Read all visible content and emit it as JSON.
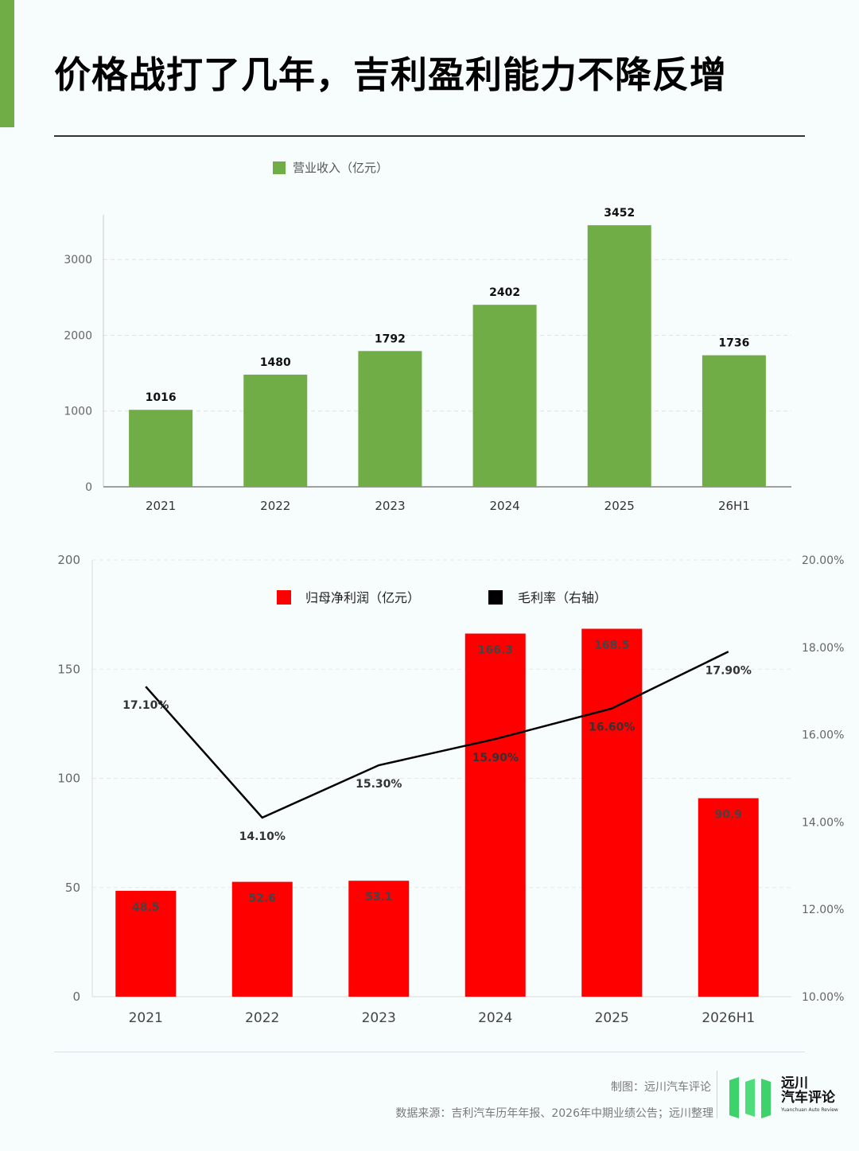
{
  "title": "价格战打了几年，吉利盈利能力不降反增",
  "chart_data": [
    {
      "type": "bar",
      "categories": [
        "2021",
        "2022",
        "2023",
        "2024",
        "2025",
        "26H1"
      ],
      "series": [
        {
          "name": "营业收入（亿元）",
          "values": [
            1016,
            1480,
            1792,
            2402,
            3452,
            1736
          ]
        }
      ],
      "ylim": [
        0,
        3800
      ],
      "yticks": [
        0,
        1000,
        2000,
        3000
      ],
      "grid": true,
      "legend": "top-left",
      "color": "#71ad47"
    },
    {
      "type": "bar",
      "categories": [
        "2021",
        "2022",
        "2023",
        "2024",
        "2025",
        "2026H1"
      ],
      "series": [
        {
          "name": "归母净利润（亿元）",
          "type": "bar",
          "axis": "left",
          "values": [
            48.5,
            52.6,
            53.1,
            166.3,
            168.5,
            90.9
          ],
          "color": "#ff0000"
        },
        {
          "name": "毛利率（右轴）",
          "type": "line",
          "axis": "right",
          "values": [
            17.1,
            14.1,
            15.3,
            15.9,
            16.6,
            17.9
          ],
          "labels": [
            "17.10%",
            "14.10%",
            "15.30%",
            "15.90%",
            "16.60%",
            "17.90%"
          ],
          "color": "#000000"
        }
      ],
      "ylim": [
        0,
        200
      ],
      "yticks": [
        0,
        50,
        100,
        150,
        200
      ],
      "y2lim": [
        10,
        20
      ],
      "y2ticks": [
        "10.00%",
        "12.00%",
        "14.00%",
        "16.00%",
        "18.00%",
        "20.00%"
      ],
      "grid": true,
      "legend": "top-center"
    }
  ],
  "footer": {
    "credit": "制图：远川汽车评论",
    "source": "数据来源：吉利汽车历年年报、2026年中期业绩公告；远川整理"
  },
  "logo": {
    "name_line1": "远川",
    "name_line2": "汽车评论",
    "tagline": "Yuanchuan Auto Review",
    "color": "#3ed36a"
  }
}
